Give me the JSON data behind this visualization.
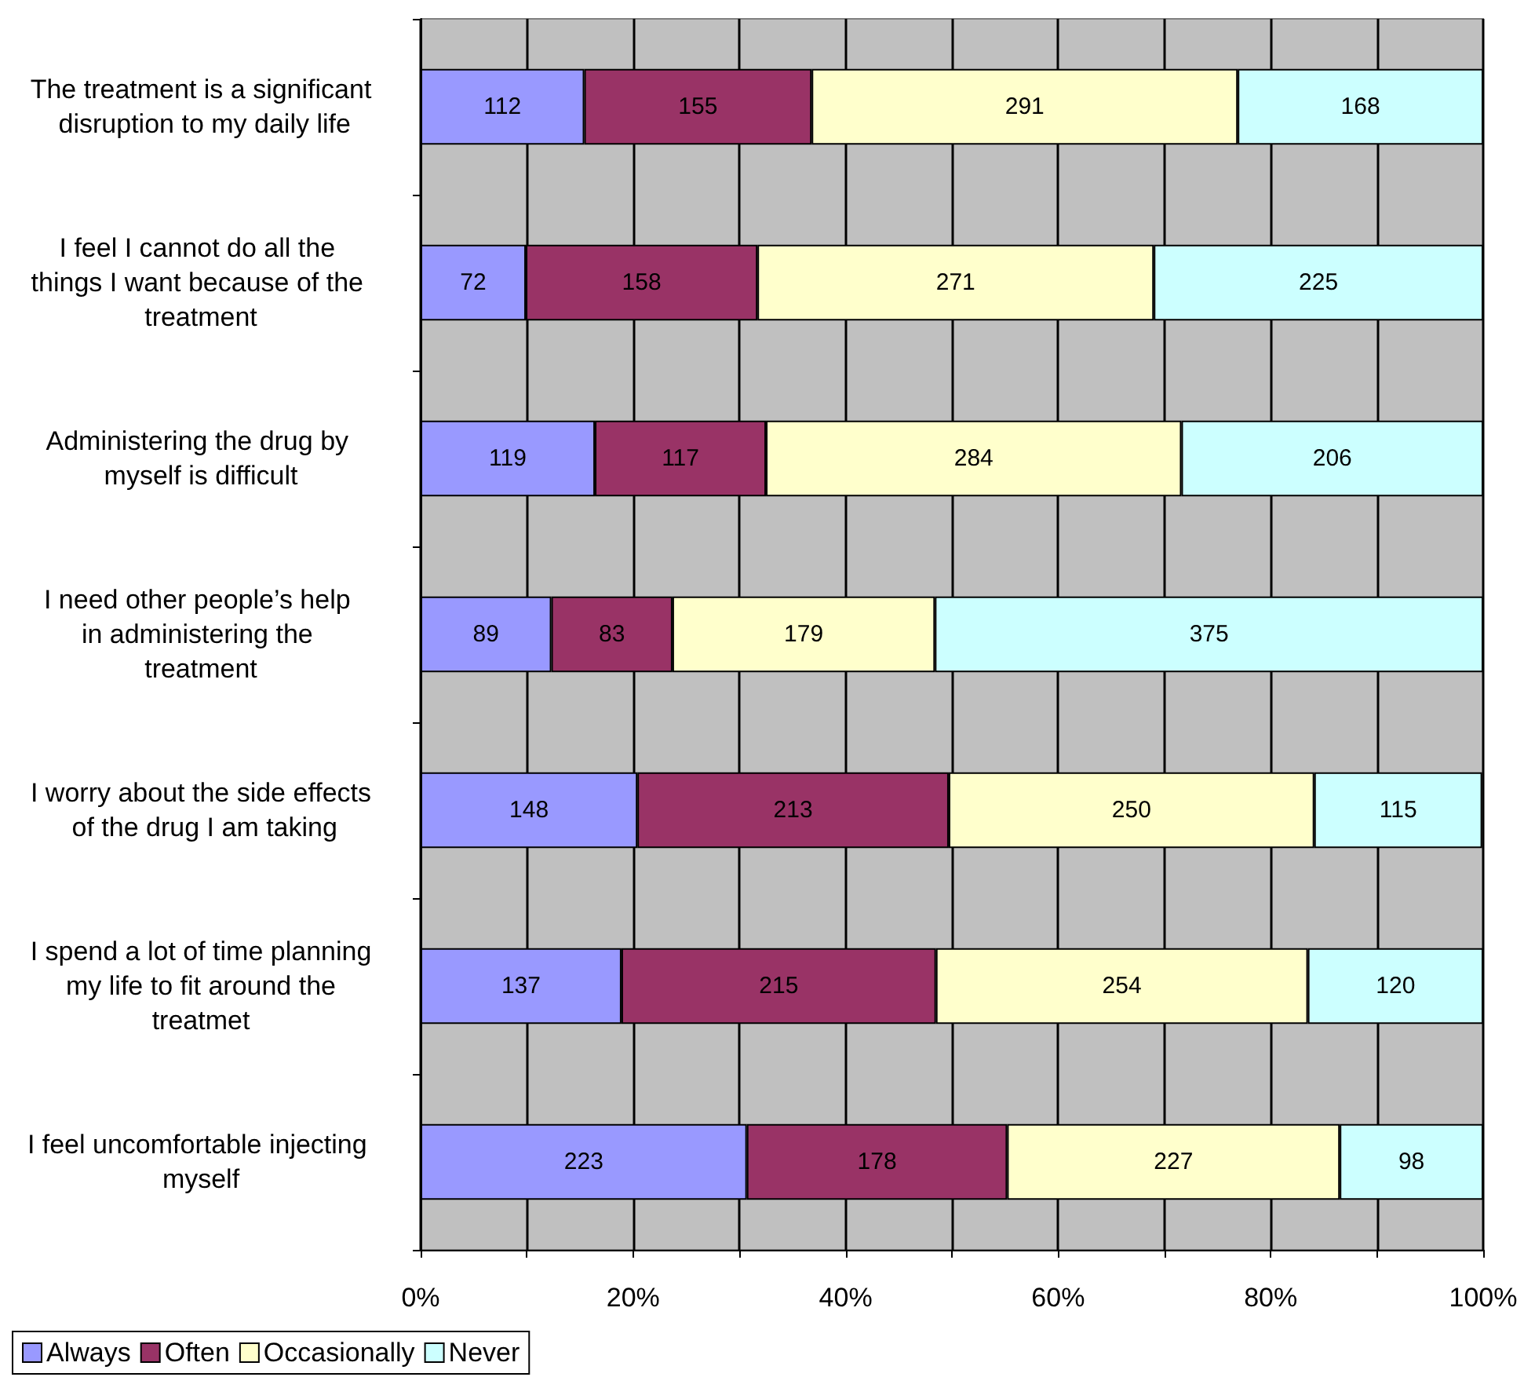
{
  "chart_data": {
    "type": "bar",
    "orientation": "horizontal",
    "stacked": true,
    "categories": [
      "The treatment is a significant disruption to my daily life",
      "I feel I cannot do all the things I want because of the treatment",
      "Administering the drug by myself is difficult",
      "I need other people’s help in administering the treatment",
      "I worry about the side effects of the drug I am taking",
      "I spend a lot of time planning my life to fit around the treatmet",
      "I feel uncomfortable injecting myself"
    ],
    "series": [
      {
        "name": "Always",
        "color": "#9999ff",
        "values": [
          15.4,
          9.9,
          16.4,
          12.3,
          20.4,
          18.9,
          30.7
        ]
      },
      {
        "name": "Often",
        "color": "#993366",
        "values": [
          21.4,
          21.8,
          16.1,
          11.4,
          29.3,
          29.6,
          24.5
        ]
      },
      {
        "name": "Occasionally",
        "color": "#ffffcc",
        "values": [
          40.1,
          37.3,
          39.1,
          24.7,
          34.4,
          35.0,
          31.3
        ]
      },
      {
        "name": "Never",
        "color": "#ccffff",
        "values": [
          23.1,
          31.0,
          28.4,
          51.6,
          15.8,
          16.5,
          13.5
        ]
      }
    ],
    "xlim": [
      0,
      100
    ],
    "xticks": [
      {
        "value": 0,
        "label": "0%"
      },
      {
        "value": 10,
        "label": null
      },
      {
        "value": 20,
        "label": "20%"
      },
      {
        "value": 30,
        "label": null
      },
      {
        "value": 40,
        "label": "40%"
      },
      {
        "value": 50,
        "label": null
      },
      {
        "value": 60,
        "label": "60%"
      },
      {
        "value": 70,
        "label": null
      },
      {
        "value": 80,
        "label": "80%"
      },
      {
        "value": 90,
        "label": null
      },
      {
        "value": 100,
        "label": "100%"
      }
    ],
    "annotations": [
      "112",
      "155",
      "291",
      "168",
      "72",
      "158",
      "271",
      "225",
      "119",
      "117",
      "284",
      "206",
      "89",
      "83",
      "179",
      "375",
      "148",
      "213",
      "250",
      "115",
      "137",
      "215",
      "254",
      "120",
      "223",
      "178",
      "227",
      "98"
    ],
    "grid": "x",
    "legend": "bottom left"
  }
}
